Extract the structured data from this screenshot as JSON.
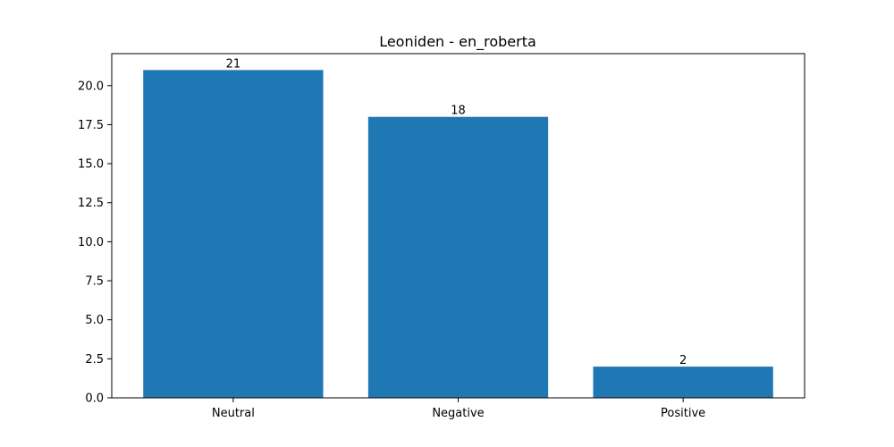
{
  "chart_data": {
    "type": "bar",
    "title": "Leoniden - en_roberta",
    "categories": [
      "Neutral",
      "Negative",
      "Positive"
    ],
    "values": [
      21,
      18,
      2
    ],
    "value_labels": [
      "21",
      "18",
      "2"
    ],
    "xlabel": "",
    "ylabel": "",
    "ylim": [
      0,
      22.05
    ],
    "yticks": [
      0.0,
      2.5,
      5.0,
      7.5,
      10.0,
      12.5,
      15.0,
      17.5,
      20.0
    ],
    "ytick_labels": [
      "0.0",
      "2.5",
      "5.0",
      "7.5",
      "10.0",
      "12.5",
      "15.0",
      "17.5",
      "20.0"
    ],
    "grid": false,
    "bar_color": "#1f77b4"
  }
}
